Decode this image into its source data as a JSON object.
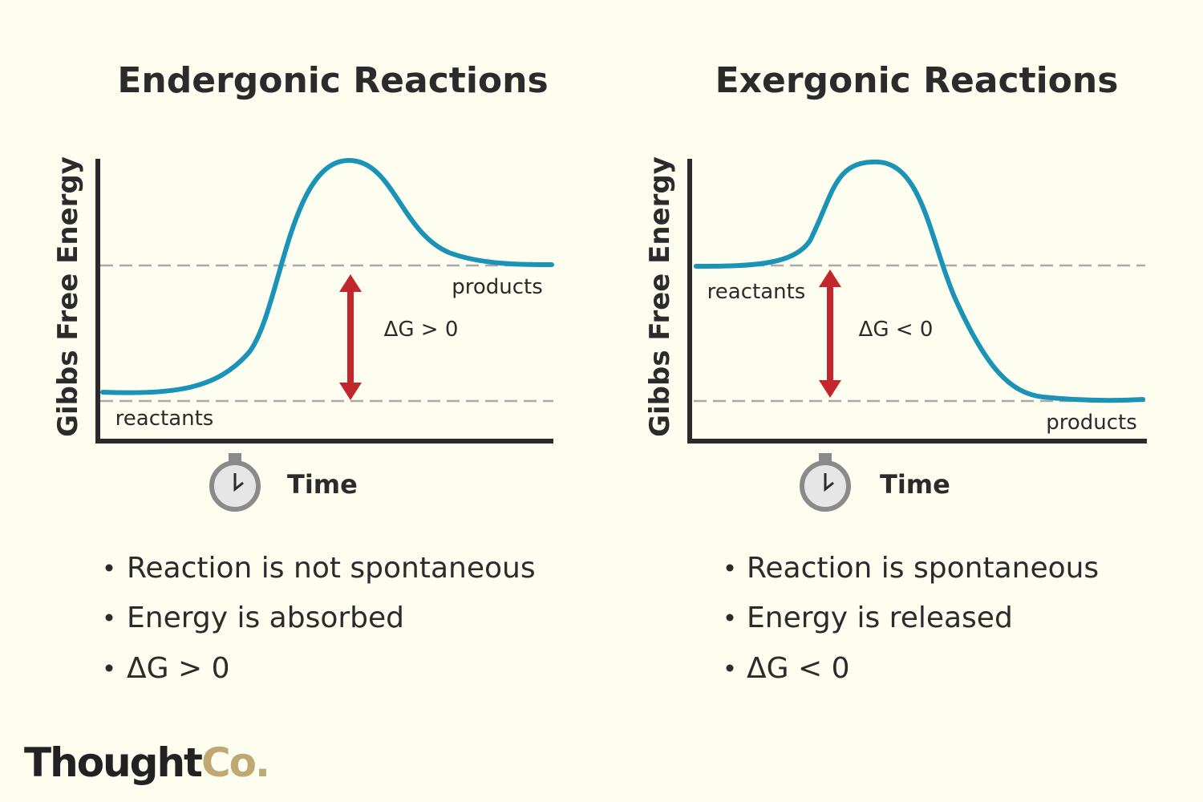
{
  "panels": [
    {
      "title": "Endergonic Reactions",
      "y_label": "Gibbs Free Energy",
      "x_label": "Time",
      "reactants_label": "reactants",
      "products_label": "products",
      "delta_label": "ΔG > 0",
      "bullets": [
        "Reaction is not spontaneous",
        "Energy is absorbed",
        "ΔG > 0"
      ]
    },
    {
      "title": "Exergonic Reactions",
      "y_label": "Gibbs Free Energy",
      "x_label": "Time",
      "reactants_label": "reactants",
      "products_label": "products",
      "delta_label": "ΔG < 0",
      "bullets": [
        "Reaction is spontaneous",
        "Energy is released",
        "ΔG < 0"
      ]
    }
  ],
  "logo": {
    "main": "Thought",
    "accent": "Co."
  }
}
